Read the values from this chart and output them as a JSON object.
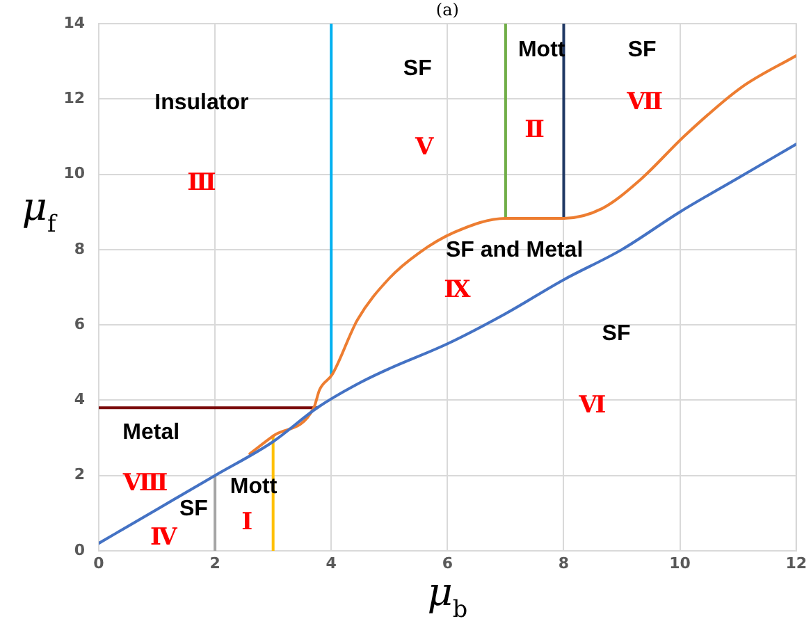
{
  "chart_data": {
    "type": "line",
    "title": "(a)",
    "xlabel": "μ$_{b}$",
    "ylabel": "μ$_{f}$",
    "xlim": [
      0,
      12
    ],
    "xticks": [
      0,
      2,
      4,
      6,
      8,
      10,
      12
    ],
    "ylim": [
      0,
      14
    ],
    "yticks": [
      0,
      2,
      4,
      6,
      8,
      10,
      12,
      14
    ],
    "grid": true,
    "legend": false,
    "marker": "none",
    "line_style": "solid",
    "series": [
      {
        "color": "#4472c4",
        "x": [
          0,
          1,
          2,
          3,
          3.76,
          4.5,
          5,
          6,
          7,
          8,
          9,
          10,
          11,
          12
        ],
        "values": [
          0.2,
          1.1,
          2.0,
          2.9,
          3.8,
          4.47,
          4.84,
          5.5,
          6.3,
          7.2,
          8.0,
          9.0,
          9.9,
          10.8
        ]
      },
      {
        "color": "#ed7d31",
        "x": [
          2.6,
          3,
          3.7,
          3.8,
          4.02,
          4.45,
          5,
          5.5,
          6.12,
          7,
          8,
          8.66,
          9.3,
          10.1,
          11.05,
          12
        ],
        "values": [
          2.58,
          3.05,
          3.8,
          4.28,
          4.69,
          6.13,
          7.24,
          7.9,
          8.46,
          8.83,
          8.83,
          9.09,
          9.83,
          11.05,
          12.3,
          13.15
        ]
      },
      {
        "color": "#00b0f0",
        "x": [
          4,
          4
        ],
        "values": [
          4.69,
          14
        ]
      },
      {
        "color": "#70ad47",
        "x": [
          7,
          7
        ],
        "values": [
          8.83,
          14
        ]
      },
      {
        "color": "#203864",
        "x": [
          8,
          8
        ],
        "values": [
          8.83,
          14
        ]
      },
      {
        "color": "#7b0c0c",
        "x": [
          0,
          3.76
        ],
        "values": [
          3.8,
          3.8
        ]
      },
      {
        "color": "#a5a5a5",
        "x": [
          2,
          2
        ],
        "values": [
          0,
          2.0
        ]
      },
      {
        "color": "#ffc000",
        "x": [
          3,
          3
        ],
        "values": [
          0,
          3.05
        ]
      }
    ],
    "annotations": [
      "Insulator",
      "Ⅲ",
      "SF",
      "Ⅴ",
      "Mott",
      "Ⅱ",
      "SF",
      "Ⅶ",
      "SF and Metal",
      "Ⅸ",
      "SF",
      "Ⅵ",
      "Metal",
      "Ⅷ",
      "SF",
      "Mott",
      "Ⅰ",
      "Ⅳ"
    ]
  }
}
